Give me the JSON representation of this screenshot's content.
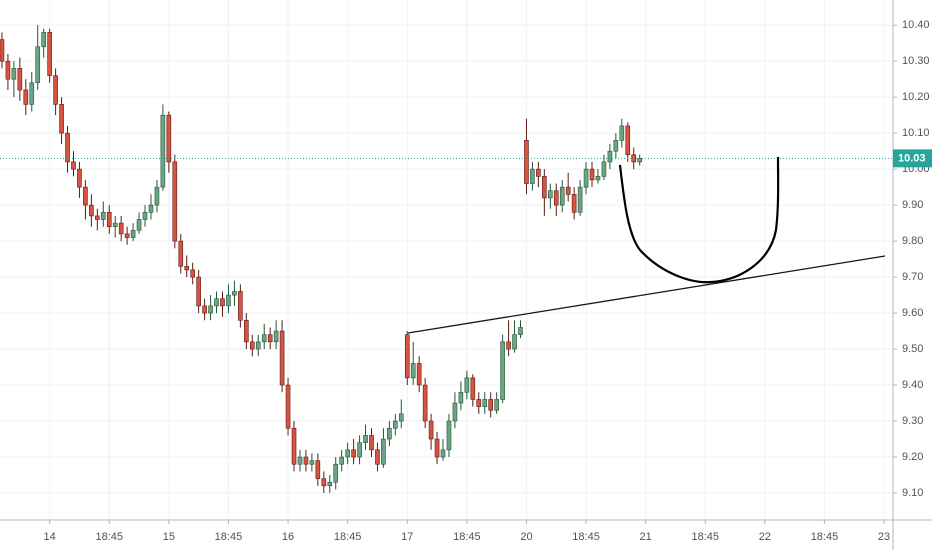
{
  "chart_data": {
    "type": "candlestick",
    "open": [
      10.36,
      10.3,
      10.25,
      10.28,
      10.22,
      10.18,
      10.24,
      10.34,
      10.38,
      10.26,
      10.18,
      10.1,
      10.02,
      10.0,
      9.95,
      9.9,
      9.87,
      9.86,
      9.88,
      9.84,
      9.85,
      9.82,
      9.81,
      9.83,
      9.86,
      9.88,
      9.9,
      9.95,
      10.15,
      10.02,
      9.8,
      9.73,
      9.72,
      9.7,
      9.62,
      9.6,
      9.62,
      9.64,
      9.62,
      9.65,
      9.66,
      9.58,
      9.52,
      9.5,
      9.52,
      9.54,
      9.52,
      9.55,
      9.4,
      9.28,
      9.18,
      9.2,
      9.18,
      9.19,
      9.14,
      9.12,
      9.13,
      9.18,
      9.2,
      9.22,
      9.2,
      9.24,
      9.26,
      9.22,
      9.18,
      9.25,
      9.28,
      9.3,
      9.54,
      9.42,
      9.46,
      9.4,
      9.3,
      9.25,
      9.2,
      9.22,
      9.3,
      9.35,
      9.38,
      9.42,
      9.36,
      9.34,
      9.36,
      9.33,
      9.36,
      9.52,
      9.5,
      9.54,
      10.08,
      9.96,
      10.0,
      9.98,
      9.92,
      9.94,
      9.9,
      9.95,
      9.93,
      9.88,
      9.95,
      10.0,
      9.97,
      9.98,
      10.02,
      10.05,
      10.08,
      10.12,
      10.04,
      10.02
    ],
    "high": [
      10.38,
      10.32,
      10.3,
      10.31,
      10.25,
      10.27,
      10.4,
      10.39,
      10.39,
      10.28,
      10.2,
      10.12,
      10.05,
      10.02,
      9.97,
      9.93,
      9.89,
      9.91,
      9.9,
      9.87,
      9.87,
      9.84,
      9.85,
      9.88,
      9.9,
      9.93,
      9.97,
      10.18,
      10.16,
      10.04,
      9.82,
      9.76,
      9.74,
      9.72,
      9.64,
      9.65,
      9.66,
      9.66,
      9.68,
      9.69,
      9.68,
      9.6,
      9.54,
      9.54,
      9.57,
      9.56,
      9.58,
      9.58,
      9.42,
      9.3,
      9.22,
      9.22,
      9.21,
      9.21,
      9.16,
      9.15,
      9.2,
      9.22,
      9.24,
      9.25,
      9.26,
      9.29,
      9.28,
      9.24,
      9.28,
      9.3,
      9.32,
      9.36,
      9.55,
      9.52,
      9.48,
      9.42,
      9.32,
      9.27,
      9.25,
      9.32,
      9.38,
      9.41,
      9.44,
      9.43,
      9.38,
      9.38,
      9.38,
      9.38,
      9.54,
      9.58,
      9.58,
      9.58,
      10.14,
      10.02,
      10.02,
      10.0,
      9.96,
      9.96,
      9.97,
      9.99,
      9.95,
      9.97,
      10.02,
      10.02,
      10.0,
      10.04,
      10.07,
      10.1,
      10.14,
      10.13,
      10.06,
      10.04
    ],
    "low": [
      10.28,
      10.22,
      10.2,
      10.19,
      10.15,
      10.16,
      10.22,
      10.31,
      10.24,
      10.15,
      10.07,
      9.99,
      9.98,
      9.92,
      9.86,
      9.84,
      9.83,
      9.84,
      9.82,
      9.81,
      9.8,
      9.79,
      9.8,
      9.82,
      9.84,
      9.86,
      9.88,
      9.94,
      9.99,
      9.78,
      9.71,
      9.7,
      9.68,
      9.6,
      9.58,
      9.58,
      9.6,
      9.59,
      9.6,
      9.62,
      9.56,
      9.5,
      9.48,
      9.48,
      9.5,
      9.5,
      9.5,
      9.38,
      9.26,
      9.16,
      9.16,
      9.16,
      9.16,
      9.12,
      9.1,
      9.1,
      9.11,
      9.16,
      9.18,
      9.18,
      9.18,
      9.22,
      9.2,
      9.16,
      9.17,
      9.23,
      9.26,
      9.28,
      9.4,
      9.4,
      9.38,
      9.28,
      9.22,
      9.18,
      9.19,
      9.2,
      9.28,
      9.33,
      9.36,
      9.34,
      9.32,
      9.32,
      9.31,
      9.32,
      9.35,
      9.48,
      9.49,
      9.53,
      9.93,
      9.94,
      9.95,
      9.87,
      9.89,
      9.87,
      9.88,
      9.91,
      9.86,
      9.87,
      9.93,
      9.95,
      9.96,
      9.97,
      10.0,
      10.03,
      10.06,
      10.02,
      10.0,
      10.01
    ],
    "close": [
      10.3,
      10.25,
      10.28,
      10.22,
      10.18,
      10.24,
      10.34,
      10.38,
      10.26,
      10.18,
      10.1,
      10.02,
      10.0,
      9.95,
      9.9,
      9.87,
      9.86,
      9.88,
      9.84,
      9.85,
      9.82,
      9.81,
      9.83,
      9.86,
      9.88,
      9.9,
      9.95,
      10.15,
      10.02,
      9.8,
      9.73,
      9.72,
      9.7,
      9.62,
      9.6,
      9.62,
      9.64,
      9.62,
      9.65,
      9.66,
      9.58,
      9.52,
      9.5,
      9.52,
      9.54,
      9.52,
      9.55,
      9.4,
      9.28,
      9.18,
      9.2,
      9.18,
      9.19,
      9.14,
      9.12,
      9.13,
      9.18,
      9.2,
      9.22,
      9.2,
      9.24,
      9.26,
      9.22,
      9.18,
      9.25,
      9.28,
      9.3,
      9.32,
      9.42,
      9.46,
      9.4,
      9.3,
      9.25,
      9.2,
      9.22,
      9.3,
      9.35,
      9.38,
      9.42,
      9.36,
      9.34,
      9.36,
      9.33,
      9.36,
      9.52,
      9.5,
      9.54,
      9.56,
      9.96,
      10.0,
      9.98,
      9.92,
      9.94,
      9.9,
      9.95,
      9.93,
      9.88,
      9.95,
      10.0,
      9.97,
      9.98,
      10.02,
      10.05,
      10.08,
      10.12,
      10.04,
      10.02,
      10.03
    ],
    "up_color": "#6ba583",
    "down_color": "#d75442",
    "last_price": 10.03,
    "last_price_color": "#26a69a",
    "xlim": [
      -0.33,
      149.5
    ],
    "xticks": [
      {
        "value": 8,
        "label": "14"
      },
      {
        "value": 18,
        "label": "18:45"
      },
      {
        "value": 28,
        "label": "15"
      },
      {
        "value": 38,
        "label": "18:45"
      },
      {
        "value": 48,
        "label": "16"
      },
      {
        "value": 58,
        "label": "18:45"
      },
      {
        "value": 68,
        "label": "17"
      },
      {
        "value": 78,
        "label": "18:45"
      },
      {
        "value": 88,
        "label": "20"
      },
      {
        "value": 98,
        "label": "18:45"
      },
      {
        "value": 108,
        "label": "21"
      },
      {
        "value": 118,
        "label": "18:45"
      },
      {
        "value": 128,
        "label": "22"
      },
      {
        "value": 138,
        "label": "18:45"
      },
      {
        "value": 148,
        "label": "23"
      }
    ],
    "ylim": [
      9.025,
      10.47
    ],
    "yticks": [
      {
        "value": 9.1,
        "label": "9.10"
      },
      {
        "value": 9.2,
        "label": "9.20"
      },
      {
        "value": 9.3,
        "label": "9.30"
      },
      {
        "value": 9.4,
        "label": "9.40"
      },
      {
        "value": 9.5,
        "label": "9.50"
      },
      {
        "value": 9.6,
        "label": "9.60"
      },
      {
        "value": 9.7,
        "label": "9.70"
      },
      {
        "value": 9.8,
        "label": "9.80"
      },
      {
        "value": 9.9,
        "label": "9.90"
      },
      {
        "value": 10.0,
        "label": "10.00"
      },
      {
        "value": 10.1,
        "label": "10.10"
      },
      {
        "value": 10.2,
        "label": "10.20"
      },
      {
        "value": 10.3,
        "label": "10.30"
      },
      {
        "value": 10.4,
        "label": "10.40"
      }
    ],
    "grid": true
  }
}
